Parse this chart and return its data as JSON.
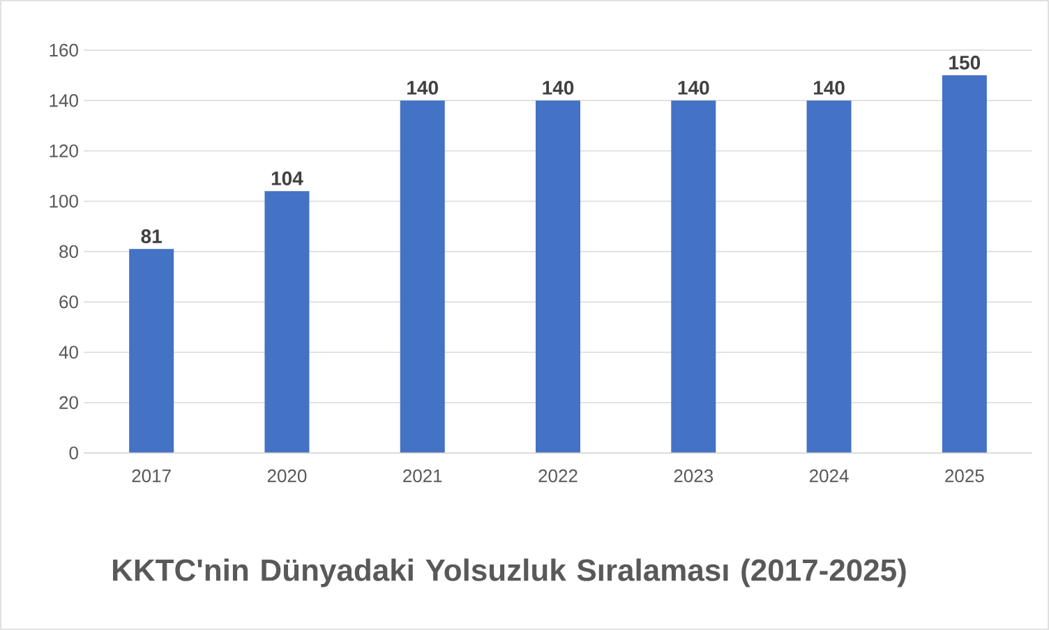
{
  "chart_data": {
    "type": "bar",
    "title": "KKTC'nin Dünyadaki Yolsuzluk Sıralaması (2017-2025)",
    "categories": [
      "2017",
      "2020",
      "2021",
      "2022",
      "2023",
      "2024",
      "2025"
    ],
    "values": [
      81,
      104,
      140,
      140,
      140,
      140,
      150
    ],
    "color": "#4472c4",
    "ylim": [
      0,
      160
    ],
    "yticks": [
      0,
      20,
      40,
      60,
      80,
      100,
      120,
      140,
      160
    ],
    "grid": "y",
    "data_labels": true
  }
}
